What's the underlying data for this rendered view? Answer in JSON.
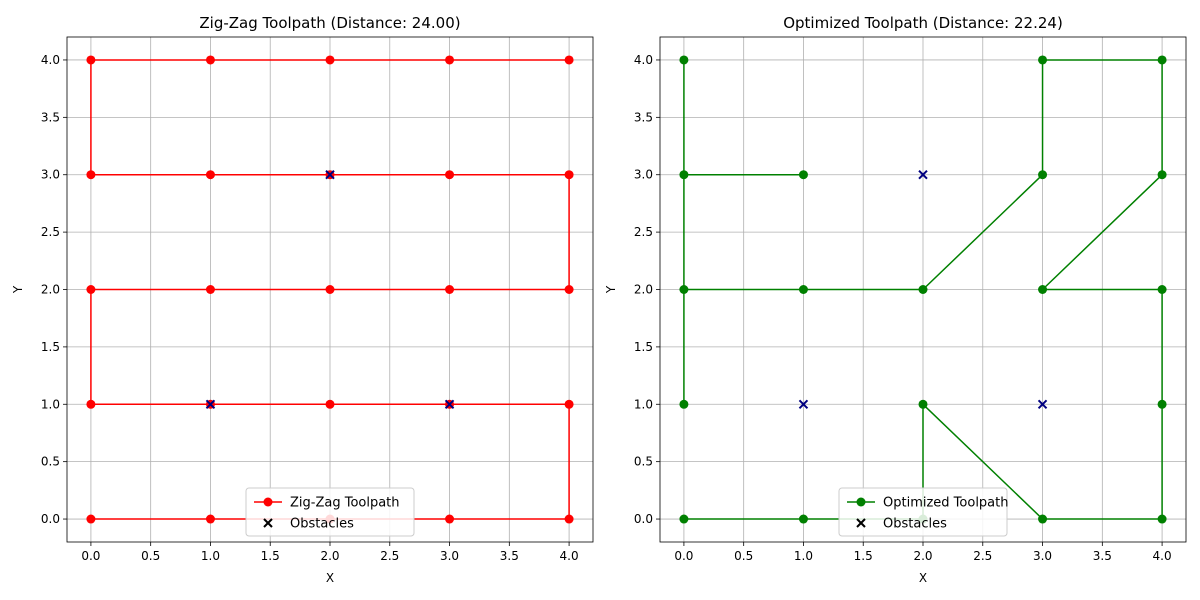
{
  "chart_data": [
    {
      "type": "line",
      "title": "Zig-Zag Toolpath (Distance: 24.00)",
      "xlabel": "X",
      "ylabel": "Y",
      "xlim": [
        -0.2,
        4.2
      ],
      "ylim": [
        -0.2,
        4.2
      ],
      "xticks": [
        "0.0",
        "0.5",
        "1.0",
        "1.5",
        "2.0",
        "2.5",
        "3.0",
        "3.5",
        "4.0"
      ],
      "yticks": [
        "0.0",
        "0.5",
        "1.0",
        "1.5",
        "2.0",
        "2.5",
        "3.0",
        "3.5",
        "4.0"
      ],
      "grid": true,
      "legend_position": "lower-center",
      "series": [
        {
          "name": "Zig-Zag Toolpath",
          "color": "#ff0000",
          "marker": "circle",
          "x": [
            0,
            1,
            2,
            3,
            4,
            4,
            3,
            2,
            1,
            0,
            0,
            1,
            2,
            3,
            4,
            4,
            3,
            2,
            1,
            0,
            0,
            1,
            2,
            3,
            4
          ],
          "y": [
            0,
            0,
            0,
            0,
            0,
            1,
            1,
            1,
            1,
            1,
            2,
            2,
            2,
            2,
            2,
            3,
            3,
            3,
            3,
            3,
            4,
            4,
            4,
            4,
            4
          ]
        },
        {
          "name": "Obstacles",
          "color": "#000080",
          "marker": "x",
          "x": [
            1,
            2,
            3
          ],
          "y": [
            1,
            3,
            1
          ]
        }
      ]
    },
    {
      "type": "line",
      "title": "Optimized Toolpath (Distance: 22.24)",
      "xlabel": "X",
      "ylabel": "Y",
      "xlim": [
        -0.2,
        4.2
      ],
      "ylim": [
        -0.2,
        4.2
      ],
      "xticks": [
        "0.0",
        "0.5",
        "1.0",
        "1.5",
        "2.0",
        "2.5",
        "3.0",
        "3.5",
        "4.0"
      ],
      "yticks": [
        "0.0",
        "0.5",
        "1.0",
        "1.5",
        "2.0",
        "2.5",
        "3.0",
        "3.5",
        "4.0"
      ],
      "grid": true,
      "legend_position": "lower-center",
      "series": [
        {
          "name": "Optimized Toolpath",
          "color": "#008000",
          "marker": "circle",
          "x": [
            0,
            1,
            2,
            2,
            3,
            4,
            4,
            4,
            3,
            4,
            4,
            3,
            3,
            2,
            1,
            0,
            0,
            0,
            0,
            1
          ],
          "y": [
            0,
            0,
            0,
            1,
            0,
            0,
            1,
            2,
            2,
            3,
            4,
            4,
            3,
            2,
            2,
            2,
            1,
            4,
            3,
            3
          ]
        },
        {
          "name": "Obstacles",
          "color": "#000080",
          "marker": "x",
          "x": [
            1,
            2,
            3
          ],
          "y": [
            1,
            3,
            1
          ]
        }
      ]
    }
  ]
}
